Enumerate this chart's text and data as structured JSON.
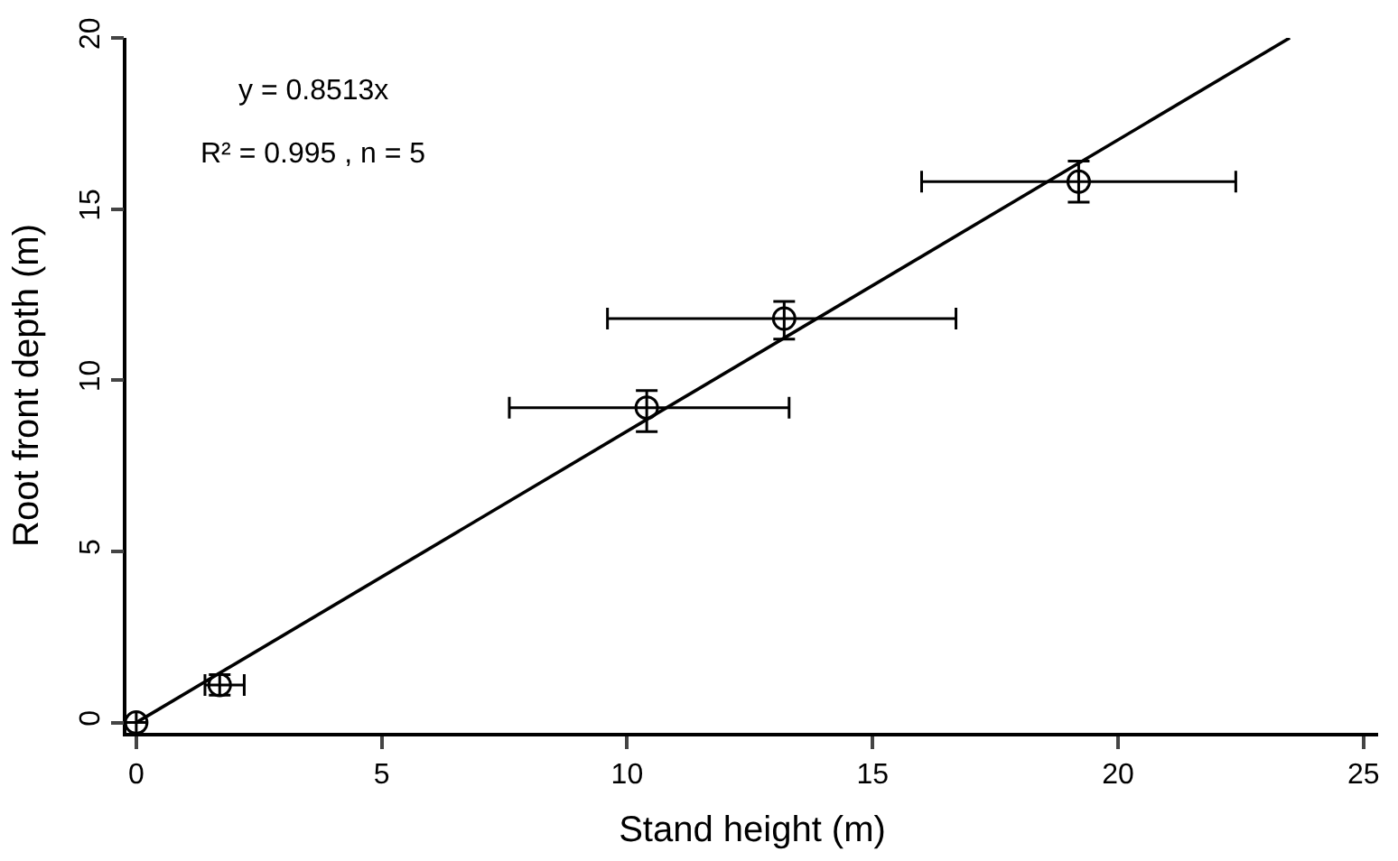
{
  "chart_data": {
    "type": "scatter",
    "xlabel": "Stand height (m)",
    "ylabel": "Root front depth (m)",
    "annotations": [
      "y = 0.8513x",
      "R² = 0.995 , n = 5"
    ],
    "xlim": [
      -0.2,
      25.3
    ],
    "ylim": [
      -0.3,
      20
    ],
    "xticks": [
      0,
      5,
      10,
      15,
      20,
      25
    ],
    "yticks": [
      0,
      5,
      10,
      15,
      20
    ],
    "series": [
      {
        "marker": "circle",
        "color": "#000000",
        "x": [
          0,
          1.7,
          10.4,
          13.2,
          19.2
        ],
        "values": [
          0,
          1.1,
          9.2,
          11.8,
          15.8
        ],
        "errors": [
          null,
          0.3,
          [
            8.5,
            9.7
          ],
          [
            11.2,
            12.3
          ],
          [
            15.2,
            16.4
          ]
        ],
        "xerrors": [
          null,
          [
            1.4,
            2.2
          ],
          [
            7.6,
            13.3
          ],
          [
            9.6,
            16.7
          ],
          [
            16.0,
            22.4
          ]
        ]
      },
      {
        "type": "line",
        "marker": "none",
        "color": "#000000",
        "x": [
          0,
          23.5
        ],
        "values": [
          0,
          20.0
        ]
      }
    ]
  }
}
